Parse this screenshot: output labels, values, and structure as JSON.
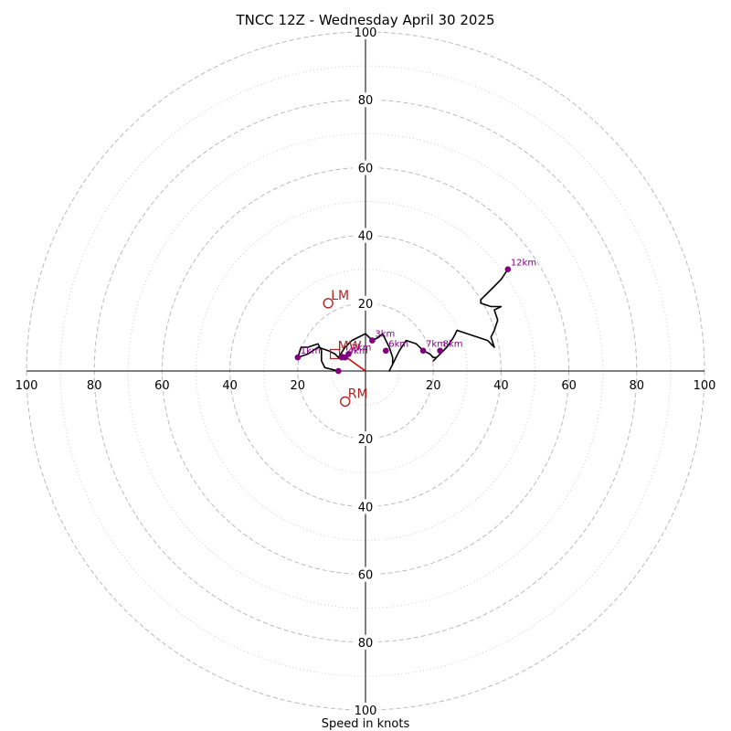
{
  "chart_data": {
    "type": "line",
    "subtype": "hodograph",
    "title": "TNCC 12Z - Wednesday April 30 2025",
    "xlabel": "Speed in knots",
    "ylabel": "",
    "xlim": [
      -100,
      100
    ],
    "ylim": [
      -100,
      100
    ],
    "tick_labels": [
      "100",
      "80",
      "60",
      "40",
      "20",
      "20",
      "40",
      "60",
      "80",
      "100"
    ],
    "ring_values_dashed": [
      20,
      40,
      60,
      80,
      100
    ],
    "ring_values_dotted": [
      10,
      30,
      50,
      70,
      90
    ],
    "grid": true,
    "colors": {
      "trace": "#000000",
      "height_marker": "#800080",
      "motion": "#b22222",
      "grid": "#bbbbbb"
    },
    "series": [
      {
        "points": [
          [
            -8,
            0
          ],
          [
            -12,
            1
          ],
          [
            -13,
            3
          ],
          [
            -13,
            6
          ],
          [
            -14,
            8
          ],
          [
            -17,
            7
          ],
          [
            -19,
            7
          ],
          [
            -20,
            4
          ],
          [
            -17,
            5
          ],
          [
            -14,
            7
          ],
          [
            -11,
            6
          ],
          [
            -9,
            5
          ],
          [
            -8,
            4
          ],
          [
            -6,
            7
          ],
          [
            -4,
            9
          ],
          [
            -2,
            10
          ],
          [
            0,
            11
          ],
          [
            2,
            9
          ],
          [
            4,
            10
          ],
          [
            5,
            11
          ],
          [
            6,
            9
          ],
          [
            7,
            7
          ],
          [
            8,
            4
          ],
          [
            8,
            2
          ],
          [
            7,
            0
          ],
          [
            8,
            2
          ],
          [
            10,
            6
          ],
          [
            12,
            9
          ],
          [
            15,
            8
          ],
          [
            17,
            6
          ],
          [
            19,
            5
          ],
          [
            20,
            4
          ],
          [
            21,
            4
          ],
          [
            20,
            3
          ],
          [
            22,
            5
          ],
          [
            24,
            7
          ],
          [
            26,
            10
          ],
          [
            27,
            12
          ],
          [
            30,
            11
          ],
          [
            33,
            10
          ],
          [
            36,
            9
          ],
          [
            38,
            7
          ],
          [
            37,
            10
          ],
          [
            38,
            12
          ],
          [
            39,
            15
          ],
          [
            38,
            18
          ],
          [
            40,
            19
          ],
          [
            37,
            19
          ],
          [
            34,
            20
          ],
          [
            34,
            21
          ],
          [
            37,
            24
          ],
          [
            40,
            27
          ],
          [
            42,
            30
          ]
        ]
      }
    ],
    "height_markers": [
      {
        "label": "",
        "u": -8,
        "v": 0
      },
      {
        "label": "",
        "u": -7,
        "v": 4
      },
      {
        "label": "1km",
        "u": -20,
        "v": 4
      },
      {
        "label": "2km",
        "u": -5,
        "v": 5
      },
      {
        "label": "3km",
        "u": 2,
        "v": 9
      },
      {
        "label": "4km",
        "u": -6,
        "v": 4
      },
      {
        "label": "6km",
        "u": 6,
        "v": 6
      },
      {
        "label": "7km",
        "u": 17,
        "v": 6
      },
      {
        "label": "8km",
        "u": 22,
        "v": 6
      },
      {
        "label": "12km",
        "u": 42,
        "v": 30
      }
    ],
    "storm_motions": [
      {
        "label": "LM",
        "u": -11,
        "v": 20
      },
      {
        "label": "MW",
        "u": -9,
        "v": 5
      },
      {
        "label": "RM",
        "u": -6,
        "v": -9
      }
    ],
    "shear_segment": [
      [
        -7,
        5
      ],
      [
        0,
        0
      ]
    ]
  }
}
